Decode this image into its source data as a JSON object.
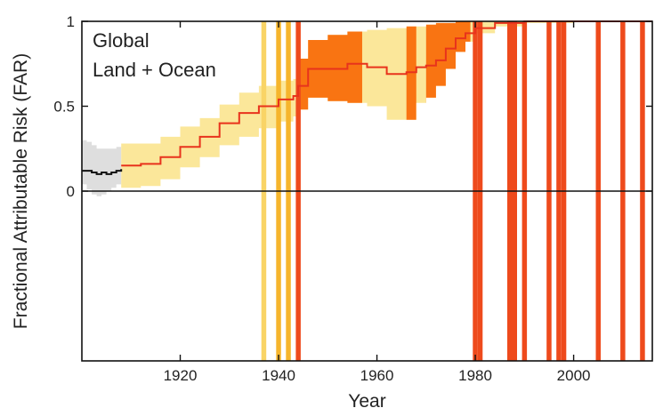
{
  "chart_data": {
    "type": "line",
    "title": "",
    "xlabel": "Year",
    "ylabel": "Fractional Attributable Risk (FAR)",
    "annotation": [
      "Global",
      "Land + Ocean"
    ],
    "xlim": [
      1900,
      2016
    ],
    "ylim": [
      -1,
      1
    ],
    "x_ticks": [
      1920,
      1940,
      1960,
      1980,
      2000
    ],
    "y_ticks": [
      {
        "value": 1,
        "label": "1"
      },
      {
        "value": 0.5,
        "label": "0.5"
      },
      {
        "value": 0,
        "label": "0"
      }
    ],
    "zero_line": true,
    "grid": false,
    "colors": {
      "pre_period_band": "#dedede",
      "pre_period_line": "#111111",
      "main_band_light": "#fbe79a",
      "main_band_dark": "#f97412",
      "far_line": "#e8331c",
      "zero_line": "#111111",
      "axis": "#111111"
    },
    "pre_period": {
      "x": [
        1900,
        1901,
        1902,
        1903,
        1904,
        1905,
        1906,
        1907,
        1908
      ],
      "y": [
        0.12,
        0.12,
        0.11,
        0.1,
        0.11,
        0.1,
        0.11,
        0.12,
        0.13
      ],
      "lower": [
        0.04,
        0.01,
        -0.02,
        -0.03,
        -0.02,
        0.0,
        0.02,
        0.04,
        0.06
      ],
      "upper": [
        0.3,
        0.29,
        0.27,
        0.25,
        0.25,
        0.25,
        0.25,
        0.26,
        0.27
      ]
    },
    "far_series": {
      "x": [
        1908,
        1912,
        1916,
        1920,
        1924,
        1928,
        1932,
        1936,
        1940,
        1943,
        1944,
        1946,
        1950,
        1954,
        1958,
        1962,
        1966,
        1968,
        1970,
        1972,
        1974,
        1976,
        1978,
        1980,
        1984,
        1990,
        2000,
        2016
      ],
      "y": [
        0.15,
        0.16,
        0.2,
        0.26,
        0.32,
        0.4,
        0.46,
        0.5,
        0.54,
        0.56,
        0.62,
        0.72,
        0.72,
        0.75,
        0.73,
        0.69,
        0.7,
        0.73,
        0.74,
        0.77,
        0.84,
        0.9,
        0.93,
        0.96,
        0.99,
        1.0,
        1.0,
        1.0
      ],
      "lower": [
        0.02,
        0.03,
        0.07,
        0.14,
        0.2,
        0.27,
        0.32,
        0.37,
        0.41,
        0.44,
        0.48,
        0.55,
        0.53,
        0.52,
        0.5,
        0.42,
        0.42,
        0.52,
        0.55,
        0.62,
        0.72,
        0.82,
        0.88,
        0.93,
        0.97,
        0.99,
        1.0,
        1.0
      ],
      "upper": [
        0.28,
        0.28,
        0.32,
        0.38,
        0.43,
        0.51,
        0.58,
        0.62,
        0.65,
        0.66,
        0.78,
        0.89,
        0.92,
        0.94,
        0.95,
        0.96,
        0.97,
        0.97,
        0.98,
        0.99,
        0.99,
        1.0,
        1.0,
        1.0,
        1.0,
        1.0,
        1.0,
        1.0
      ]
    },
    "dark_band_spans": [
      [
        1944,
        1957
      ],
      [
        1966,
        1968
      ],
      [
        1970,
        1979
      ]
    ],
    "highlight_bars": [
      {
        "year": 1937,
        "level": "light"
      },
      {
        "year": 1940,
        "level": "medium"
      },
      {
        "year": 1942,
        "level": "medium"
      },
      {
        "year": 1944,
        "level": "dark"
      },
      {
        "year": 1980,
        "level": "dark"
      },
      {
        "year": 1981,
        "level": "dark"
      },
      {
        "year": 1987,
        "level": "dark"
      },
      {
        "year": 1988,
        "level": "dark"
      },
      {
        "year": 1990,
        "level": "dark"
      },
      {
        "year": 1995,
        "level": "dark"
      },
      {
        "year": 1997,
        "level": "dark"
      },
      {
        "year": 1998,
        "level": "dark"
      },
      {
        "year": 2005,
        "level": "dark"
      },
      {
        "year": 2010,
        "level": "dark"
      },
      {
        "year": 2014,
        "level": "dark"
      }
    ],
    "highlight_colors": {
      "light": "#f9d466",
      "medium": "#f6b52c",
      "dark": "#ee4a1c"
    }
  }
}
